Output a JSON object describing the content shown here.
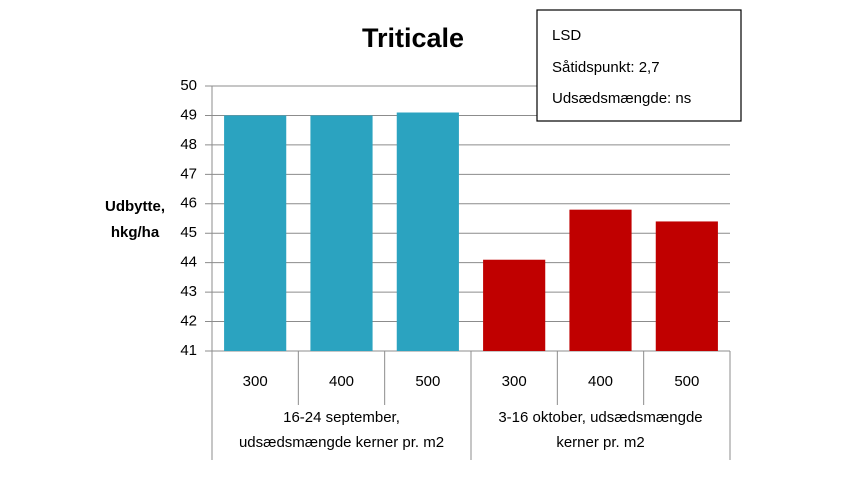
{
  "chart_data": {
    "type": "bar",
    "title": "Triticale",
    "ylabel": [
      "Udbytte,",
      "hkg/ha"
    ],
    "annotation": [
      "LSD",
      "Såtidspunkt: 2,7",
      "Udsædsmængde: ns"
    ],
    "groups": [
      {
        "label": [
          "16-24 september,",
          "udsædsmængde kerner pr. m2"
        ],
        "color": "#2ba3c0",
        "categories": [
          "300",
          "400",
          "500"
        ],
        "values": [
          49.0,
          49.0,
          49.1
        ]
      },
      {
        "label": [
          "3-16 oktober, udsædsmængde",
          "kerner pr. m2"
        ],
        "color": "#c00000",
        "categories": [
          "300",
          "400",
          "500"
        ],
        "values": [
          44.1,
          45.8,
          45.4
        ]
      }
    ],
    "ylim": [
      41,
      50
    ],
    "yticks": [
      41,
      42,
      43,
      44,
      45,
      46,
      47,
      48,
      49,
      50
    ],
    "grid": true
  }
}
